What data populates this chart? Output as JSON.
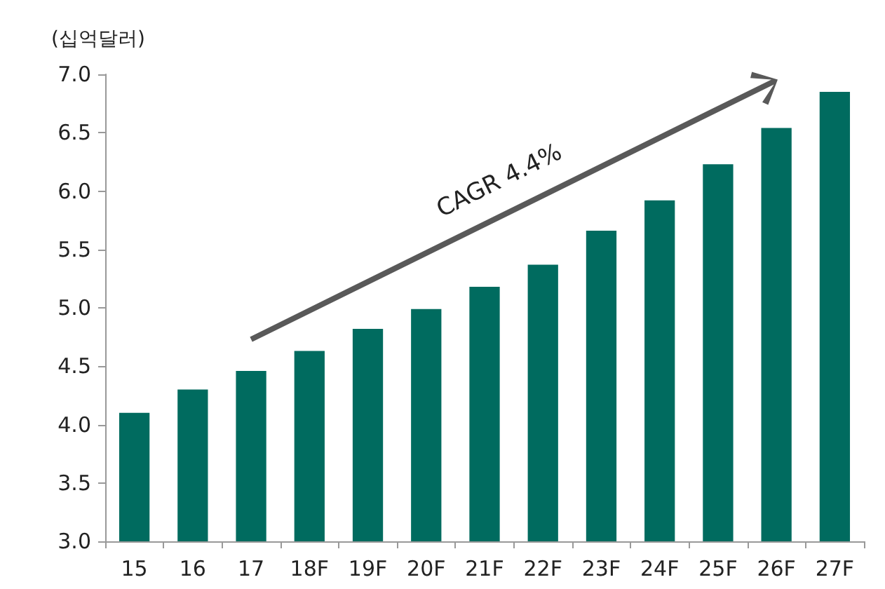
{
  "chart_data": {
    "type": "bar",
    "ylabel": "(십억달러)",
    "categories": [
      "15",
      "16",
      "17",
      "18F",
      "19F",
      "20F",
      "21F",
      "22F",
      "23F",
      "24F",
      "25F",
      "26F",
      "27F"
    ],
    "values": [
      4.1,
      4.3,
      4.46,
      4.63,
      4.82,
      4.99,
      5.18,
      5.37,
      5.66,
      5.92,
      6.23,
      6.54,
      6.85
    ],
    "color": "#006b5f",
    "ylim": [
      3.0,
      7.0
    ],
    "yticks": [
      {
        "value": 3,
        "label": "3.0"
      },
      {
        "value": 3.5,
        "label": "3.5"
      },
      {
        "value": 4,
        "label": "4.0"
      },
      {
        "value": 4.5,
        "label": "4.5"
      },
      {
        "value": 5,
        "label": "5.0"
      },
      {
        "value": 5.5,
        "label": "5.5"
      },
      {
        "value": 6,
        "label": "6.0"
      },
      {
        "value": 6.5,
        "label": "6.5"
      },
      {
        "value": 7,
        "label": "7.0"
      }
    ],
    "grid": false,
    "annotations": [
      "CAGR 4.4%"
    ]
  }
}
